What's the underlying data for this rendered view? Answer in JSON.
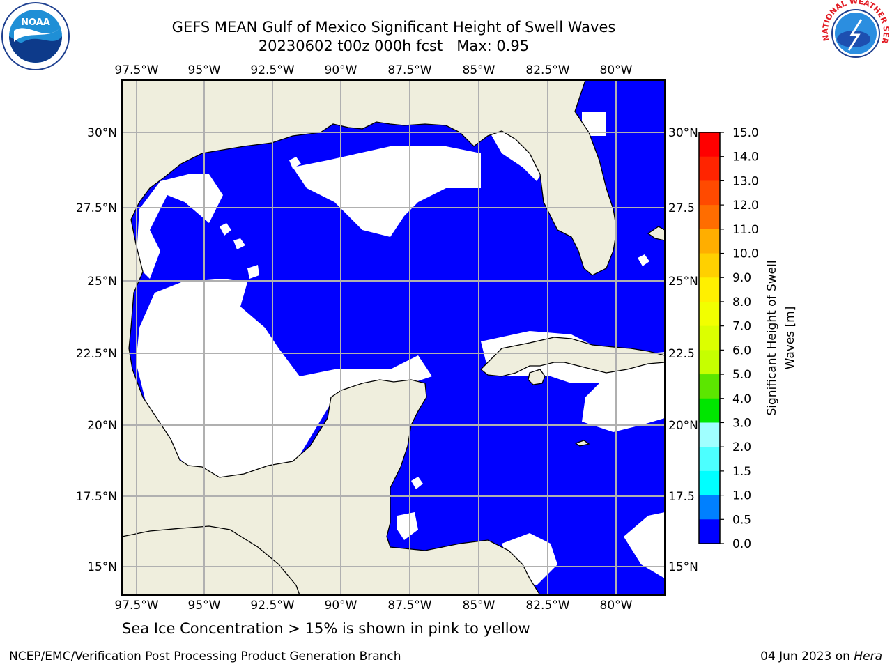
{
  "title": {
    "line1": "GEFS MEAN Gulf of Mexico Significant Height of Swell Waves",
    "line2": "20230602 t00z 000h fcst   Max: 0.95"
  },
  "logos": {
    "left": "noaa-logo",
    "right": "nws-logo",
    "nws_ring_text": "NATIONAL WEATHER SERVICE"
  },
  "axes": {
    "lon_labels": [
      "97.5°W",
      "95°W",
      "92.5°W",
      "90°W",
      "87.5°W",
      "85°W",
      "82.5°W",
      "80°W"
    ],
    "lat_labels": [
      "30°N",
      "27.5°N",
      "25°N",
      "22.5°N",
      "20°N",
      "17.5°N",
      "15°N"
    ],
    "lat_labels_right": [
      "30°N",
      "27.5",
      "25°N",
      "22.5",
      "20°N",
      "17.5",
      "15°N"
    ]
  },
  "colorbar": {
    "label": "Significant Height of Swell\nWaves [m]",
    "ticks": [
      "15.0",
      "14.0",
      "13.0",
      "12.0",
      "11.0",
      "10.0",
      "9.0",
      "8.0",
      "7.0",
      "6.0",
      "5.0",
      "4.0",
      "3.0",
      "2.0",
      "1.5",
      "1.0",
      "0.5",
      "0.0"
    ],
    "colors": [
      "#ff0000",
      "#ff2400",
      "#ff4a00",
      "#ff6d00",
      "#ff8d00",
      "#ffae00",
      "#ffd000",
      "#fff000",
      "#f2ff00",
      "#dcff00",
      "#c6ff00",
      "#5ce600",
      "#00e600",
      "#50ff80",
      "#a0ffff",
      "#4cffff",
      "#00ffff",
      "#0080ff",
      "#0000ff"
    ]
  },
  "colors": {
    "land": "#efeedd",
    "wave_low": "#0000ff",
    "wave_mid": "#0080ff",
    "grid": "#b0b0b0"
  },
  "footer": {
    "note": "Sea Ice Concentration > 15% is shown in pink to yellow",
    "left": "NCEP/EMC/Verification Post Processing Product Generation Branch",
    "right_date": "04 Jun 2023 on ",
    "right_machine": "Hera"
  }
}
